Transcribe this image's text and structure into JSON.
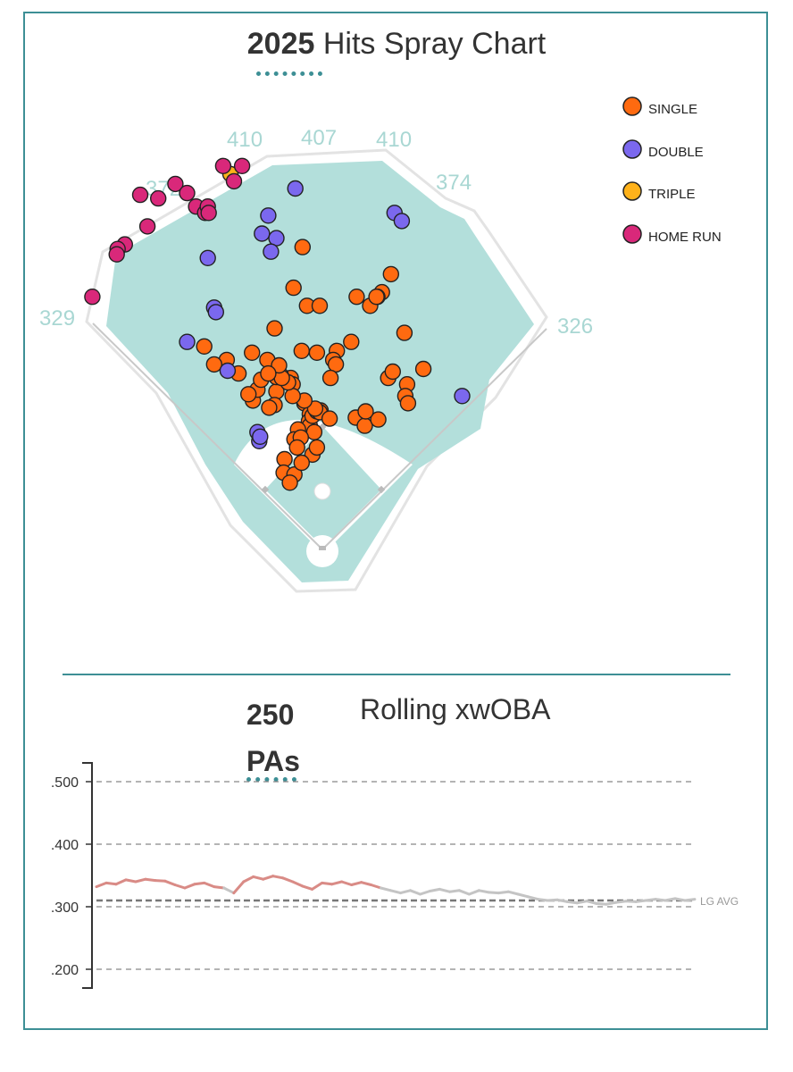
{
  "spray": {
    "title_year": "2025",
    "title_rest": " Hits Spray Chart",
    "wall_labels": [
      "329",
      "372",
      "410",
      "407",
      "410",
      "374",
      "326"
    ],
    "legend": [
      {
        "label": "SINGLE",
        "color": "#ff6a10"
      },
      {
        "label": "DOUBLE",
        "color": "#7b68ee"
      },
      {
        "label": "TRIPLE",
        "color": "#ffb21a"
      },
      {
        "label": "HOME RUN",
        "color": "#d9287a"
      }
    ]
  },
  "rolling": {
    "pa_label_1": "250",
    "pa_label_2": "PAs",
    "title": "Rolling xwOBA",
    "lg_avg_label": "LG AVG"
  },
  "chart_data": [
    {
      "type": "scatter",
      "title": "2025 Hits Spray Chart",
      "note": "x/y are approximate field coordinates in feet (home plate at 0,0; +x toward right field, +y toward center field)",
      "series": [
        {
          "name": "SINGLE",
          "points": [
            [
              -22,
              335
            ],
            [
              -32,
              290
            ],
            [
              -17,
              270
            ],
            [
              -3,
              270
            ],
            [
              38,
              280
            ],
            [
              53,
              270
            ],
            [
              76,
              305
            ],
            [
              66,
              285
            ],
            [
              61,
              280
            ],
            [
              60,
              280
            ],
            [
              91,
              240
            ],
            [
              -53,
              245
            ],
            [
              -23,
              220
            ],
            [
              32,
              230
            ],
            [
              16,
              220
            ],
            [
              12,
              210
            ],
            [
              15,
              205
            ],
            [
              9,
              190
            ],
            [
              -6,
              218
            ],
            [
              -35,
              190
            ],
            [
              -51,
              175
            ],
            [
              -53,
              160
            ],
            [
              -59,
              157
            ],
            [
              -77,
              165
            ],
            [
              -72,
              177
            ],
            [
              -68,
              188
            ],
            [
              -82,
              172
            ],
            [
              -93,
              195
            ],
            [
              -106,
              210
            ],
            [
              -120,
              205
            ],
            [
              -131,
              225
            ],
            [
              -78,
              218
            ],
            [
              -61,
              210
            ],
            [
              -33,
              183
            ],
            [
              -20,
              162
            ],
            [
              -14,
              150
            ],
            [
              -15,
              142
            ],
            [
              -14,
              137
            ],
            [
              -9,
              130
            ],
            [
              -11,
              105
            ],
            [
              -11,
              148
            ],
            [
              -27,
              133
            ],
            [
              -31,
              122
            ],
            [
              -24,
              124
            ],
            [
              -28,
              113
            ],
            [
              -42,
              100
            ],
            [
              -43,
              85
            ],
            [
              -31,
              83
            ],
            [
              -6,
              113
            ],
            [
              -36,
              74
            ],
            [
              -23,
              96
            ],
            [
              -2,
              154
            ],
            [
              -6,
              153
            ],
            [
              -3,
              152
            ],
            [
              -8,
              156
            ],
            [
              -20,
              165
            ],
            [
              -33,
              170
            ],
            [
              8,
              145
            ],
            [
              37,
              146
            ],
            [
              47,
              137
            ],
            [
              62,
              144
            ],
            [
              48,
              153
            ],
            [
              73,
              190
            ],
            [
              78,
              197
            ],
            [
              94,
              183
            ],
            [
              92,
              170
            ],
            [
              95,
              162
            ],
            [
              112,
              200
            ],
            [
              -51,
              191
            ],
            [
              -46,
              193
            ],
            [
              -38,
              185
            ],
            [
              -45,
              190
            ],
            [
              -48,
              204
            ],
            [
              -60,
              195
            ]
          ]
        },
        {
          "name": "DOUBLE",
          "points": [
            [
              -30,
              400
            ],
            [
              -60,
              370
            ],
            [
              -67,
              350
            ],
            [
              -51,
              345
            ],
            [
              -57,
              330
            ],
            [
              -127,
              323
            ],
            [
              -120,
              268
            ],
            [
              -118,
              263
            ],
            [
              -150,
              230
            ],
            [
              -105,
              198
            ],
            [
              -72,
              130
            ],
            [
              -70,
              120
            ],
            [
              -69,
              125
            ],
            [
              80,
              373
            ],
            [
              88,
              364
            ],
            [
              155,
              170
            ]
          ]
        },
        {
          "name": "TRIPLE",
          "points": [
            [
              -102,
              416
            ]
          ]
        },
        {
          "name": "HOME RUN",
          "points": [
            [
              -110,
              425
            ],
            [
              -89,
              425
            ],
            [
              -98,
              408
            ],
            [
              -140,
              380
            ],
            [
              -163,
              405
            ],
            [
              -150,
              395
            ],
            [
              -202,
              393
            ],
            [
              -182,
              389
            ],
            [
              -194,
              358
            ],
            [
              -219,
              338
            ],
            [
              -227,
              333
            ],
            [
              -228,
              327
            ],
            [
              -255,
              280
            ],
            [
              -130,
              373
            ],
            [
              -127,
              380
            ],
            [
              -126,
              373
            ]
          ]
        }
      ]
    },
    {
      "type": "line",
      "title": "Rolling xwOBA",
      "window": "250 PAs",
      "ylim": [
        0.15,
        0.55
      ],
      "yticks": [
        ".200",
        ".300",
        ".400",
        ".500"
      ],
      "reference_line": {
        "label": "LG AVG",
        "value": 0.31
      },
      "grid": true,
      "y": [
        0.332,
        0.338,
        0.336,
        0.343,
        0.34,
        0.344,
        0.342,
        0.341,
        0.335,
        0.33,
        0.336,
        0.338,
        0.332,
        0.33,
        0.322,
        0.34,
        0.348,
        0.344,
        0.349,
        0.346,
        0.34,
        0.333,
        0.328,
        0.338,
        0.336,
        0.34,
        0.335,
        0.339,
        0.335,
        0.33,
        0.326,
        0.322,
        0.326,
        0.32,
        0.325,
        0.328,
        0.324,
        0.326,
        0.32,
        0.326,
        0.323,
        0.322,
        0.324,
        0.32,
        0.316,
        0.312,
        0.31,
        0.311,
        0.308,
        0.306,
        0.309,
        0.305,
        0.304,
        0.307,
        0.309,
        0.308,
        0.31,
        0.312,
        0.31,
        0.313,
        0.31,
        0.312
      ]
    }
  ]
}
